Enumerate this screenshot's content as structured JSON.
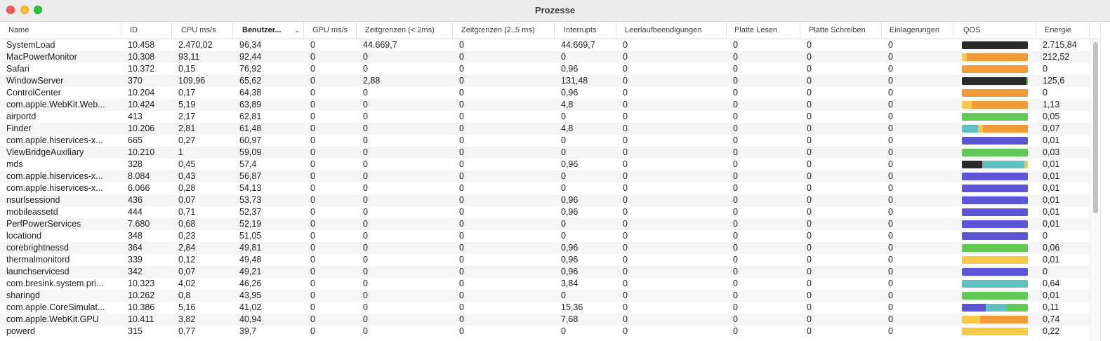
{
  "window": {
    "title": "Prozesse"
  },
  "colors": {
    "black": "#2a2a2a",
    "orange": "#f39a38",
    "yellow": "#f7c948",
    "green": "#62c955",
    "teal": "#5fc2c0",
    "blue": "#5b56d6"
  },
  "columns": [
    {
      "key": "name",
      "label": "Name"
    },
    {
      "key": "id",
      "label": "ID"
    },
    {
      "key": "cpu",
      "label": "CPU ms/s"
    },
    {
      "key": "user",
      "label": "Benutzer..."
    },
    {
      "key": "gpu",
      "label": "GPU ms/s"
    },
    {
      "key": "timers2",
      "label": "Zeitgrenzen (< 2ms)"
    },
    {
      "key": "timers25",
      "label": "Zeitgrenzen (2..5 ms)"
    },
    {
      "key": "interrupts",
      "label": "Interrupts"
    },
    {
      "key": "idle",
      "label": "Leerlaufbeendigungen"
    },
    {
      "key": "diskread",
      "label": "Platte Lesen"
    },
    {
      "key": "diskwrite",
      "label": "Platte Schreiben"
    },
    {
      "key": "pagein",
      "label": "Einlagerungen"
    },
    {
      "key": "qos",
      "label": "QOS"
    },
    {
      "key": "energy",
      "label": "Energie"
    }
  ],
  "processes": [
    {
      "name": "SystemLoad",
      "id": "10.458",
      "cpu": "2.470,02",
      "user": "96,34",
      "gpu": "0",
      "timers2": "44.669,7",
      "timers25": "0",
      "interrupts": "44.669,7",
      "idle": "0",
      "diskread": "0",
      "diskwrite": "0",
      "pagein": "0",
      "energy": "2.715,84",
      "qos": [
        [
          "black",
          1.0
        ]
      ]
    },
    {
      "name": "MacPowerMonitor",
      "id": "10.308",
      "cpu": "93,11",
      "user": "92,44",
      "gpu": "0",
      "timers2": "0",
      "timers25": "0",
      "interrupts": "0",
      "idle": "0",
      "diskread": "0",
      "diskwrite": "0",
      "pagein": "0",
      "energy": "212,52",
      "qos": [
        [
          "yellow",
          0.07
        ],
        [
          "orange",
          0.93
        ]
      ]
    },
    {
      "name": "Safari",
      "id": "10.372",
      "cpu": "0,15",
      "user": "76,92",
      "gpu": "0",
      "timers2": "0",
      "timers25": "0",
      "interrupts": "0,96",
      "idle": "0",
      "diskread": "0",
      "diskwrite": "0",
      "pagein": "0",
      "energy": "0",
      "qos": [
        [
          "orange",
          1.0
        ]
      ]
    },
    {
      "name": "WindowServer",
      "id": "370",
      "cpu": "109,96",
      "user": "65,62",
      "gpu": "0",
      "timers2": "2,88",
      "timers25": "0",
      "interrupts": "131,48",
      "idle": "0",
      "diskread": "0",
      "diskwrite": "0",
      "pagein": "0",
      "energy": "125,6",
      "qos": [
        [
          "black",
          0.98
        ],
        [
          "green",
          0.02
        ]
      ]
    },
    {
      "name": "ControlCenter",
      "id": "10.204",
      "cpu": "0,17",
      "user": "64,38",
      "gpu": "0",
      "timers2": "0",
      "timers25": "0",
      "interrupts": "0,96",
      "idle": "0",
      "diskread": "0",
      "diskwrite": "0",
      "pagein": "0",
      "energy": "0",
      "qos": [
        [
          "orange",
          1.0
        ]
      ]
    },
    {
      "name": "com.apple.WebKit.Web...",
      "id": "10.424",
      "cpu": "5,19",
      "user": "63,89",
      "gpu": "0",
      "timers2": "0",
      "timers25": "0",
      "interrupts": "4,8",
      "idle": "0",
      "diskread": "0",
      "diskwrite": "0",
      "pagein": "0",
      "energy": "1,13",
      "qos": [
        [
          "yellow",
          0.15
        ],
        [
          "orange",
          0.85
        ]
      ]
    },
    {
      "name": "airportd",
      "id": "413",
      "cpu": "2,17",
      "user": "62,81",
      "gpu": "0",
      "timers2": "0",
      "timers25": "0",
      "interrupts": "0",
      "idle": "0",
      "diskread": "0",
      "diskwrite": "0",
      "pagein": "0",
      "energy": "0,05",
      "qos": [
        [
          "green",
          1.0
        ]
      ]
    },
    {
      "name": "Finder",
      "id": "10.206",
      "cpu": "2,81",
      "user": "61,48",
      "gpu": "0",
      "timers2": "0",
      "timers25": "0",
      "interrupts": "4,8",
      "idle": "0",
      "diskread": "0",
      "diskwrite": "0",
      "pagein": "0",
      "energy": "0,07",
      "qos": [
        [
          "teal",
          0.24
        ],
        [
          "yellow",
          0.08
        ],
        [
          "orange",
          0.68
        ]
      ]
    },
    {
      "name": "com.apple.hiservices-x...",
      "id": "665",
      "cpu": "0,27",
      "user": "60,97",
      "gpu": "0",
      "timers2": "0",
      "timers25": "0",
      "interrupts": "0",
      "idle": "0",
      "diskread": "0",
      "diskwrite": "0",
      "pagein": "0",
      "energy": "0,01",
      "qos": [
        [
          "blue",
          1.0
        ]
      ]
    },
    {
      "name": "ViewBridgeAuxiliary",
      "id": "10.210",
      "cpu": "1",
      "user": "59,09",
      "gpu": "0",
      "timers2": "0",
      "timers25": "0",
      "interrupts": "0",
      "idle": "0",
      "diskread": "0",
      "diskwrite": "0",
      "pagein": "0",
      "energy": "0,03",
      "qos": [
        [
          "green",
          1.0
        ]
      ]
    },
    {
      "name": "mds",
      "id": "328",
      "cpu": "0,45",
      "user": "57,4",
      "gpu": "0",
      "timers2": "0",
      "timers25": "0",
      "interrupts": "0,96",
      "idle": "0",
      "diskread": "0",
      "diskwrite": "0",
      "pagein": "0",
      "energy": "0,01",
      "qos": [
        [
          "black",
          0.31
        ],
        [
          "teal",
          0.64
        ],
        [
          "yellow",
          0.05
        ]
      ]
    },
    {
      "name": "com.apple.hiservices-x...",
      "id": "8.084",
      "cpu": "0,43",
      "user": "56,87",
      "gpu": "0",
      "timers2": "0",
      "timers25": "0",
      "interrupts": "0",
      "idle": "0",
      "diskread": "0",
      "diskwrite": "0",
      "pagein": "0",
      "energy": "0,01",
      "qos": [
        [
          "blue",
          1.0
        ]
      ]
    },
    {
      "name": "com.apple.hiservices-x...",
      "id": "6.066",
      "cpu": "0,28",
      "user": "54,13",
      "gpu": "0",
      "timers2": "0",
      "timers25": "0",
      "interrupts": "0",
      "idle": "0",
      "diskread": "0",
      "diskwrite": "0",
      "pagein": "0",
      "energy": "0,01",
      "qos": [
        [
          "blue",
          1.0
        ]
      ]
    },
    {
      "name": "nsurlsessiond",
      "id": "436",
      "cpu": "0,07",
      "user": "53,73",
      "gpu": "0",
      "timers2": "0",
      "timers25": "0",
      "interrupts": "0,96",
      "idle": "0",
      "diskread": "0",
      "diskwrite": "0",
      "pagein": "0",
      "energy": "0,01",
      "qos": [
        [
          "blue",
          1.0
        ]
      ]
    },
    {
      "name": "mobileassetd",
      "id": "444",
      "cpu": "0,71",
      "user": "52,37",
      "gpu": "0",
      "timers2": "0",
      "timers25": "0",
      "interrupts": "0,96",
      "idle": "0",
      "diskread": "0",
      "diskwrite": "0",
      "pagein": "0",
      "energy": "0,01",
      "qos": [
        [
          "blue",
          1.0
        ]
      ]
    },
    {
      "name": "PerfPowerServices",
      "id": "7.680",
      "cpu": "0,68",
      "user": "52,19",
      "gpu": "0",
      "timers2": "0",
      "timers25": "0",
      "interrupts": "0",
      "idle": "0",
      "diskread": "0",
      "diskwrite": "0",
      "pagein": "0",
      "energy": "0,01",
      "qos": [
        [
          "blue",
          1.0
        ]
      ]
    },
    {
      "name": "locationd",
      "id": "348",
      "cpu": "0,23",
      "user": "51,05",
      "gpu": "0",
      "timers2": "0",
      "timers25": "0",
      "interrupts": "0",
      "idle": "0",
      "diskread": "0",
      "diskwrite": "0",
      "pagein": "0",
      "energy": "0",
      "qos": [
        [
          "blue",
          1.0
        ]
      ]
    },
    {
      "name": "corebrightnessd",
      "id": "364",
      "cpu": "2,84",
      "user": "49,81",
      "gpu": "0",
      "timers2": "0",
      "timers25": "0",
      "interrupts": "0,96",
      "idle": "0",
      "diskread": "0",
      "diskwrite": "0",
      "pagein": "0",
      "energy": "0,06",
      "qos": [
        [
          "green",
          1.0
        ]
      ]
    },
    {
      "name": "thermalmonitord",
      "id": "339",
      "cpu": "0,12",
      "user": "49,48",
      "gpu": "0",
      "timers2": "0",
      "timers25": "0",
      "interrupts": "0,96",
      "idle": "0",
      "diskread": "0",
      "diskwrite": "0",
      "pagein": "0",
      "energy": "0,01",
      "qos": [
        [
          "yellow",
          1.0
        ]
      ]
    },
    {
      "name": "launchservicesd",
      "id": "342",
      "cpu": "0,07",
      "user": "49,21",
      "gpu": "0",
      "timers2": "0",
      "timers25": "0",
      "interrupts": "0,96",
      "idle": "0",
      "diskread": "0",
      "diskwrite": "0",
      "pagein": "0",
      "energy": "0",
      "qos": [
        [
          "blue",
          1.0
        ]
      ]
    },
    {
      "name": "com.bresink.system.pri...",
      "id": "10.323",
      "cpu": "4,02",
      "user": "46,26",
      "gpu": "0",
      "timers2": "0",
      "timers25": "0",
      "interrupts": "3,84",
      "idle": "0",
      "diskread": "0",
      "diskwrite": "0",
      "pagein": "0",
      "energy": "0,64",
      "qos": [
        [
          "teal",
          1.0
        ]
      ]
    },
    {
      "name": "sharingd",
      "id": "10.262",
      "cpu": "0,8",
      "user": "43,95",
      "gpu": "0",
      "timers2": "0",
      "timers25": "0",
      "interrupts": "0",
      "idle": "0",
      "diskread": "0",
      "diskwrite": "0",
      "pagein": "0",
      "energy": "0,01",
      "qos": [
        [
          "green",
          1.0
        ]
      ]
    },
    {
      "name": "com.apple.CoreSimulat...",
      "id": "10.386",
      "cpu": "5,16",
      "user": "41,02",
      "gpu": "0",
      "timers2": "0",
      "timers25": "0",
      "interrupts": "15,36",
      "idle": "0",
      "diskread": "0",
      "diskwrite": "0",
      "pagein": "0",
      "energy": "0,11",
      "qos": [
        [
          "blue",
          0.36
        ],
        [
          "teal",
          0.32
        ],
        [
          "green",
          0.32
        ]
      ]
    },
    {
      "name": "com.apple.WebKit.GPU",
      "id": "10.411",
      "cpu": "3,82",
      "user": "40,94",
      "gpu": "0",
      "timers2": "0",
      "timers25": "0",
      "interrupts": "7,68",
      "idle": "0",
      "diskread": "0",
      "diskwrite": "0",
      "pagein": "0",
      "energy": "0,74",
      "qos": [
        [
          "yellow",
          0.28
        ],
        [
          "orange",
          0.72
        ]
      ]
    },
    {
      "name": "powerd",
      "id": "315",
      "cpu": "0,77",
      "user": "39,7",
      "gpu": "0",
      "timers2": "0",
      "timers25": "0",
      "interrupts": "0",
      "idle": "0",
      "diskread": "0",
      "diskwrite": "0",
      "pagein": "0",
      "energy": "0,22",
      "qos": [
        [
          "yellow",
          1.0
        ]
      ]
    }
  ]
}
